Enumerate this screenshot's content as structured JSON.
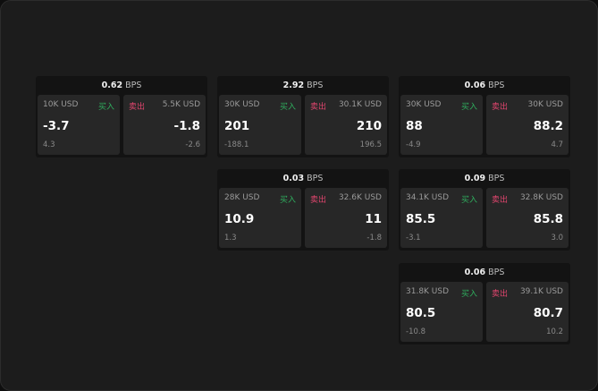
{
  "colors": {
    "buy": "#2fae5e",
    "sell": "#e0456e"
  },
  "unit": "BPS",
  "cards": [
    {
      "spread": "0.62",
      "buy": {
        "size": "10K USD",
        "label": "买入",
        "price": "-3.7",
        "change": "4.3"
      },
      "sell": {
        "size": "5.5K USD",
        "label": "卖出",
        "price": "-1.8",
        "change": "-2.6"
      }
    },
    {
      "spread": "2.92",
      "buy": {
        "size": "30K USD",
        "label": "买入",
        "price": "201",
        "change": "-188.1"
      },
      "sell": {
        "size": "30.1K USD",
        "label": "卖出",
        "price": "210",
        "change": "196.5"
      }
    },
    {
      "spread": "0.06",
      "buy": {
        "size": "30K USD",
        "label": "买入",
        "price": "88",
        "change": "-4.9"
      },
      "sell": {
        "size": "30K USD",
        "label": "卖出",
        "price": "88.2",
        "change": "4.7"
      }
    },
    {
      "spread": "0.03",
      "buy": {
        "size": "28K USD",
        "label": "买入",
        "price": "10.9",
        "change": "1.3"
      },
      "sell": {
        "size": "32.6K USD",
        "label": "卖出",
        "price": "11",
        "change": "-1.8"
      }
    },
    {
      "spread": "0.09",
      "buy": {
        "size": "34.1K USD",
        "label": "买入",
        "price": "85.5",
        "change": "-3.1"
      },
      "sell": {
        "size": "32.8K USD",
        "label": "卖出",
        "price": "85.8",
        "change": "3.0"
      }
    },
    {
      "spread": "0.06",
      "buy": {
        "size": "31.8K USD",
        "label": "买入",
        "price": "80.5",
        "change": "-10.8"
      },
      "sell": {
        "size": "39.1K USD",
        "label": "卖出",
        "price": "80.7",
        "change": "10.2"
      }
    }
  ]
}
